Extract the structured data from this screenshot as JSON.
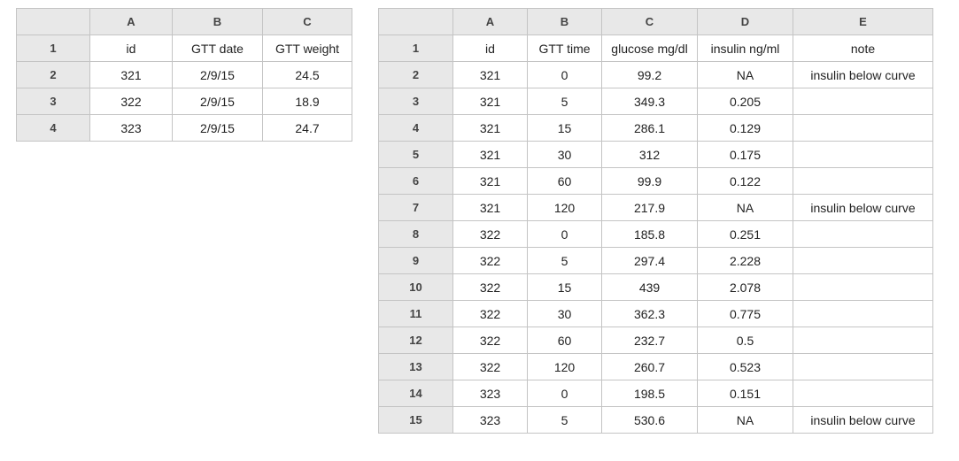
{
  "sheet1": {
    "columns": [
      "A",
      "B",
      "C"
    ],
    "row_numbers": [
      "1",
      "2",
      "3",
      "4"
    ],
    "rows": [
      [
        "id",
        "GTT date",
        "GTT weight"
      ],
      [
        "321",
        "2/9/15",
        "24.5"
      ],
      [
        "322",
        "2/9/15",
        "18.9"
      ],
      [
        "323",
        "2/9/15",
        "24.7"
      ]
    ]
  },
  "sheet2": {
    "columns": [
      "A",
      "B",
      "C",
      "D",
      "E"
    ],
    "row_numbers": [
      "1",
      "2",
      "3",
      "4",
      "5",
      "6",
      "7",
      "8",
      "9",
      "10",
      "11",
      "12",
      "13",
      "14",
      "15"
    ],
    "rows": [
      [
        "id",
        "GTT time",
        "glucose mg/dl",
        "insulin ng/ml",
        "note"
      ],
      [
        "321",
        "0",
        "99.2",
        "NA",
        "insulin below curve"
      ],
      [
        "321",
        "5",
        "349.3",
        "0.205",
        ""
      ],
      [
        "321",
        "15",
        "286.1",
        "0.129",
        ""
      ],
      [
        "321",
        "30",
        "312",
        "0.175",
        ""
      ],
      [
        "321",
        "60",
        "99.9",
        "0.122",
        ""
      ],
      [
        "321",
        "120",
        "217.9",
        "NA",
        "insulin below curve"
      ],
      [
        "322",
        "0",
        "185.8",
        "0.251",
        ""
      ],
      [
        "322",
        "5",
        "297.4",
        "2.228",
        ""
      ],
      [
        "322",
        "15",
        "439",
        "2.078",
        ""
      ],
      [
        "322",
        "30",
        "362.3",
        "0.775",
        ""
      ],
      [
        "322",
        "60",
        "232.7",
        "0.5",
        ""
      ],
      [
        "322",
        "120",
        "260.7",
        "0.523",
        ""
      ],
      [
        "323",
        "0",
        "198.5",
        "0.151",
        ""
      ],
      [
        "323",
        "5",
        "530.6",
        "NA",
        "insulin below curve"
      ]
    ]
  }
}
